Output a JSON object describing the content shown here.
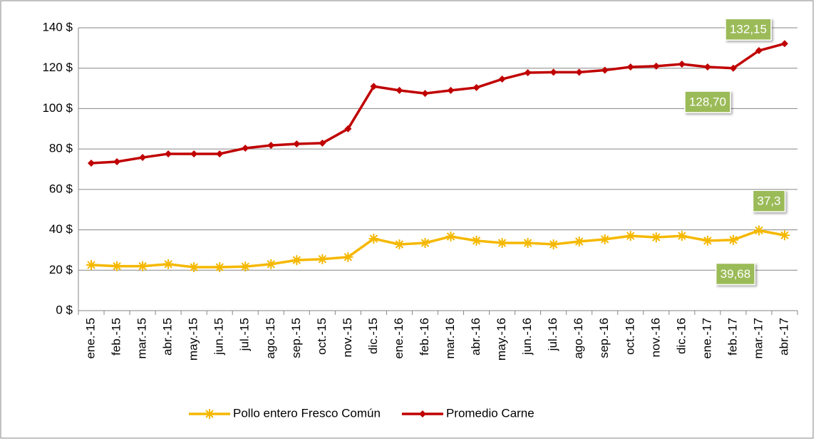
{
  "chart_data": {
    "type": "line",
    "categories": [
      "ene.-15",
      "feb.-15",
      "mar.-15",
      "abr.-15",
      "may.-15",
      "jun.-15",
      "jul.-15",
      "ago.-15",
      "sep.-15",
      "oct.-15",
      "nov.-15",
      "dic.-15",
      "ene.-16",
      "feb.-16",
      "mar.-16",
      "abr.-16",
      "may.-16",
      "jun.-16",
      "jul.-16",
      "ago.-16",
      "sep.-16",
      "oct.-16",
      "nov.-16",
      "dic.-16",
      "ene.-17",
      "feb.-17",
      "mar.-17",
      "abr.-17"
    ],
    "series": [
      {
        "name": "Pollo entero Fresco Común",
        "color": "#f5b800",
        "marker": "star",
        "values": [
          22.6,
          22,
          22,
          23,
          21.5,
          21.5,
          21.8,
          23,
          25,
          25.5,
          26.5,
          35.6,
          32.8,
          33.5,
          36.7,
          34.6,
          33.5,
          33.5,
          32.8,
          34.2,
          35.3,
          37,
          36.3,
          37,
          34.6,
          35,
          39.68,
          37.3
        ],
        "value_labels": [
          null,
          null,
          null,
          null,
          null,
          null,
          null,
          null,
          null,
          null,
          null,
          null,
          null,
          null,
          null,
          null,
          null,
          null,
          null,
          null,
          null,
          null,
          null,
          null,
          null,
          null,
          "39,68",
          "37,3"
        ]
      },
      {
        "name": "Promedio Carne",
        "color": "#c00000",
        "marker": "diamond",
        "values": [
          73,
          73.7,
          75.8,
          77.6,
          77.6,
          77.6,
          80.4,
          81.8,
          82.5,
          82.9,
          90,
          111,
          109,
          107.5,
          109,
          110.4,
          114.6,
          117.8,
          118,
          118,
          119,
          120.6,
          121,
          122,
          120.6,
          120,
          128.7,
          132.15
        ],
        "value_labels": [
          null,
          null,
          null,
          null,
          null,
          null,
          null,
          null,
          null,
          null,
          null,
          null,
          null,
          null,
          null,
          null,
          null,
          null,
          null,
          null,
          null,
          null,
          null,
          null,
          null,
          null,
          "128,70",
          "132,15"
        ]
      }
    ],
    "ylim": [
      0,
      140
    ],
    "yticks": [
      {
        "value": 0,
        "label": "0 $"
      },
      {
        "value": 20,
        "label": "20 $"
      },
      {
        "value": 40,
        "label": "40 $"
      },
      {
        "value": 60,
        "label": "60 $"
      },
      {
        "value": 80,
        "label": "80 $"
      },
      {
        "value": 100,
        "label": "100 $"
      },
      {
        "value": 120,
        "label": "120 $"
      },
      {
        "value": 140,
        "label": "140 $"
      }
    ],
    "grid": true,
    "legend": "bottom"
  }
}
